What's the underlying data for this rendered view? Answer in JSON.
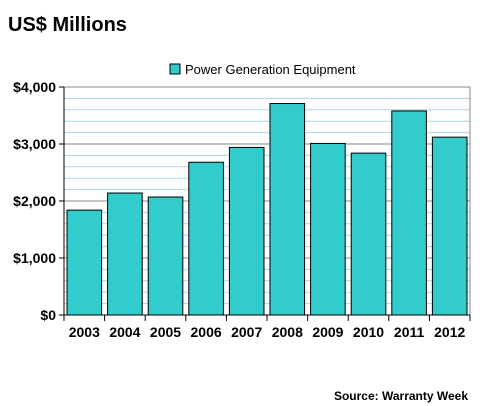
{
  "chart_data": {
    "type": "bar",
    "title": "US$ Millions",
    "categories": [
      "2003",
      "2004",
      "2005",
      "2006",
      "2007",
      "2008",
      "2009",
      "2010",
      "2011",
      "2012"
    ],
    "series": [
      {
        "name": "Power Generation Equipment",
        "values": [
          1840,
          2140,
          2070,
          2680,
          2940,
          3710,
          3010,
          2840,
          3580,
          3120
        ]
      }
    ],
    "y_ticks": [
      "$0",
      "$1,000",
      "$2,000",
      "$3,000",
      "$4,000"
    ],
    "ylim": [
      0,
      4000
    ],
    "xlabel": "",
    "ylabel": "",
    "grid": true,
    "legend_position": "top",
    "bar_color": "#33CCCC",
    "grid_color": "#A9D7E6",
    "source": "Source: Warranty Week"
  }
}
